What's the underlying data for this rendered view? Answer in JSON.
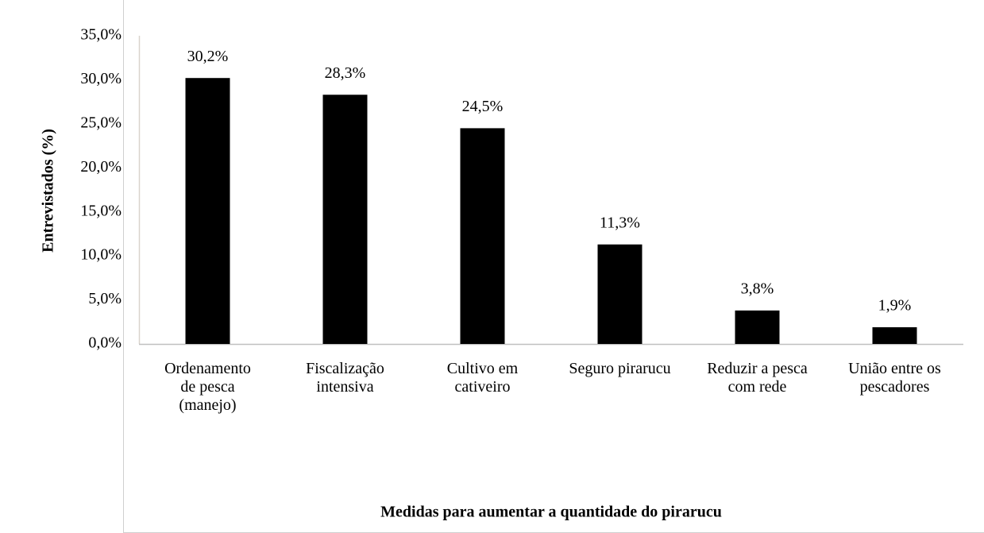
{
  "chart_data": {
    "type": "bar",
    "x_label": "Medidas para aumentar a quantidade do pirarucu",
    "y_label": "Entrevistados (%)",
    "categories": [
      "Ordenamento\nde pesca\n(manejo)",
      "Fiscalização\nintensiva",
      "Cultivo em\ncativeiro",
      "Seguro pirarucu",
      "Reduzir a pesca\ncom rede",
      "União entre os\npescadores"
    ],
    "values": [
      30.2,
      28.3,
      24.5,
      11.3,
      3.8,
      1.9
    ],
    "value_labels": [
      "30,2%",
      "28,3%",
      "24,5%",
      "11,3%",
      "3,8%",
      "1,9%"
    ],
    "color": "#000000",
    "ylim": [
      0,
      35
    ],
    "yticks": [
      {
        "value": 0,
        "label": "0,0%"
      },
      {
        "value": 5,
        "label": "5,0%"
      },
      {
        "value": 10,
        "label": "10,0%"
      },
      {
        "value": 15,
        "label": "15,0%"
      },
      {
        "value": 20,
        "label": "20,0%"
      },
      {
        "value": 25,
        "label": "25,0%"
      },
      {
        "value": 30,
        "label": "30,0%"
      },
      {
        "value": 35,
        "label": "35,0%"
      }
    ],
    "grid": false
  }
}
